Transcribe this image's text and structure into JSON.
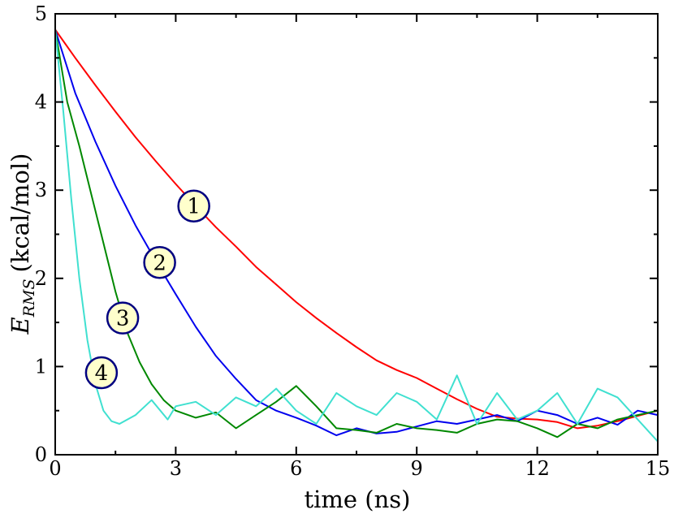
{
  "chart_data": {
    "type": "line",
    "title": "",
    "xlabel": "time (ns)",
    "ylabel_main": "E",
    "ylabel_sub": "RMS",
    "ylabel_units": "(kcal/mol)",
    "xlim": [
      0,
      15
    ],
    "ylim": [
      0,
      5
    ],
    "xticks": [
      0,
      3,
      6,
      9,
      12,
      15
    ],
    "yticks": [
      0,
      1,
      2,
      3,
      4,
      5
    ],
    "grid": false,
    "legend": "numbered circle labels placed on each curve",
    "series": [
      {
        "name": "1",
        "color": "#ff0000",
        "label_at": [
          3.45,
          2.82
        ],
        "x": [
          0,
          0.5,
          1,
          1.5,
          2,
          2.5,
          3,
          3.5,
          4,
          4.5,
          5,
          5.5,
          6,
          6.5,
          7,
          7.5,
          8,
          8.5,
          9,
          9.5,
          10,
          10.5,
          11,
          11.5,
          12,
          12.5,
          13,
          13.5,
          14,
          14.5,
          15
        ],
        "y": [
          4.82,
          4.5,
          4.19,
          3.89,
          3.6,
          3.33,
          3.07,
          2.82,
          2.58,
          2.36,
          2.13,
          1.93,
          1.73,
          1.55,
          1.38,
          1.22,
          1.07,
          0.96,
          0.87,
          0.75,
          0.63,
          0.52,
          0.43,
          0.41,
          0.4,
          0.37,
          0.3,
          0.33,
          0.38,
          0.44,
          0.5
        ]
      },
      {
        "name": "2",
        "color": "#0000ee",
        "label_at": [
          2.6,
          2.18
        ],
        "x": [
          0,
          0.5,
          1,
          1.5,
          2,
          2.5,
          3,
          3.5,
          4,
          4.5,
          5,
          5.5,
          6,
          6.5,
          7,
          7.5,
          8,
          8.5,
          9,
          9.5,
          10,
          10.5,
          11,
          11.5,
          12,
          12.5,
          13,
          13.5,
          14,
          14.5,
          15
        ],
        "y": [
          4.82,
          4.1,
          3.55,
          3.05,
          2.6,
          2.2,
          1.82,
          1.45,
          1.12,
          0.86,
          0.62,
          0.5,
          0.42,
          0.33,
          0.22,
          0.3,
          0.24,
          0.26,
          0.32,
          0.38,
          0.35,
          0.4,
          0.45,
          0.38,
          0.5,
          0.45,
          0.35,
          0.42,
          0.34,
          0.5,
          0.45
        ]
      },
      {
        "name": "3",
        "color": "#008800",
        "label_at": [
          1.68,
          1.55
        ],
        "x": [
          0,
          0.3,
          0.6,
          0.9,
          1.2,
          1.5,
          1.8,
          2.1,
          2.4,
          2.7,
          3,
          3.5,
          4,
          4.5,
          5,
          5.5,
          6,
          6.5,
          7,
          7.5,
          8,
          8.5,
          9,
          9.5,
          10,
          10.5,
          11,
          11.5,
          12,
          12.5,
          13,
          13.5,
          14,
          14.5,
          15
        ],
        "y": [
          4.82,
          4.0,
          3.5,
          2.95,
          2.4,
          1.85,
          1.38,
          1.05,
          0.8,
          0.62,
          0.5,
          0.42,
          0.48,
          0.3,
          0.45,
          0.6,
          0.78,
          0.55,
          0.3,
          0.28,
          0.25,
          0.35,
          0.3,
          0.28,
          0.25,
          0.35,
          0.4,
          0.38,
          0.3,
          0.2,
          0.35,
          0.3,
          0.4,
          0.45,
          0.5
        ]
      },
      {
        "name": "4",
        "color": "#40e0d0",
        "label_at": [
          1.15,
          0.93
        ],
        "x": [
          0,
          0.2,
          0.4,
          0.6,
          0.8,
          1,
          1.2,
          1.4,
          1.6,
          2,
          2.4,
          2.8,
          3,
          3.5,
          4,
          4.5,
          5,
          5.5,
          6,
          6.5,
          7,
          7.5,
          8,
          8.5,
          9,
          9.5,
          10,
          10.5,
          11,
          11.5,
          12,
          12.5,
          13,
          13.5,
          14,
          14.5,
          15
        ],
        "y": [
          4.82,
          3.9,
          2.9,
          2.0,
          1.3,
          0.8,
          0.5,
          0.38,
          0.35,
          0.45,
          0.62,
          0.4,
          0.55,
          0.6,
          0.45,
          0.65,
          0.55,
          0.75,
          0.5,
          0.35,
          0.7,
          0.55,
          0.45,
          0.7,
          0.6,
          0.4,
          0.9,
          0.35,
          0.7,
          0.4,
          0.5,
          0.7,
          0.35,
          0.75,
          0.65,
          0.4,
          0.15
        ]
      }
    ]
  },
  "colors": {
    "frame": "#000000",
    "badge_fill": "#ffffcc",
    "badge_stroke": "#000080"
  }
}
